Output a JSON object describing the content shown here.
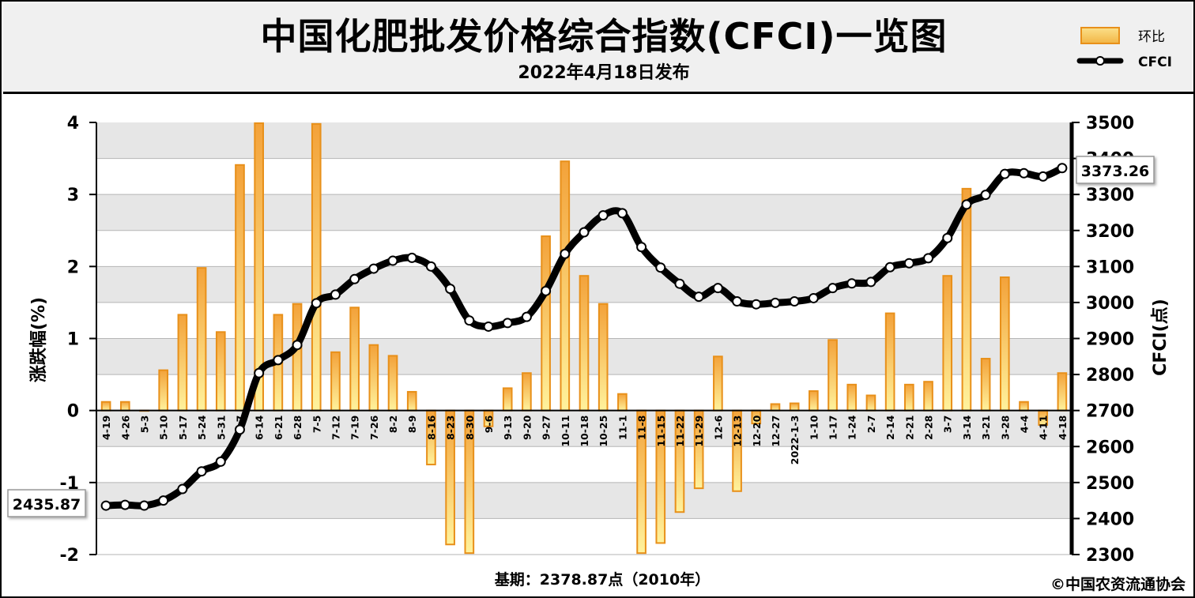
{
  "header": {
    "title": "中国化肥批发价格综合指数(CFCI)一览图",
    "subtitle": "2022年4月18日发布"
  },
  "legend": {
    "bar_label": "环比",
    "line_label": "CFCI"
  },
  "footer": {
    "base_period": "基期：2378.87点（2010年）",
    "copyright": "©中国农资流通协会"
  },
  "colors": {
    "bar_stroke": "#e8901a",
    "bar_fill_top": "#f4a43a",
    "bar_fill_bottom": "#fff2a0",
    "line": "#000000",
    "band": "#e6e6e6"
  },
  "chart_data": {
    "type": "bar+line",
    "categories": [
      "4-19",
      "4-26",
      "5-3",
      "5-10",
      "5-17",
      "5-24",
      "5-31",
      "6-7",
      "6-14",
      "6-21",
      "6-28",
      "7-5",
      "7-12",
      "7-19",
      "7-26",
      "8-2",
      "8-9",
      "8-16",
      "8-23",
      "8-30",
      "9-6",
      "9-13",
      "9-20",
      "9-27",
      "10-11",
      "10-18",
      "10-25",
      "11-1",
      "11-8",
      "11-15",
      "11-22",
      "11-29",
      "12-6",
      "12-13",
      "12-20",
      "12-27",
      "2022-1-3",
      "1-10",
      "1-17",
      "1-24",
      "2-7",
      "2-14",
      "2-21",
      "2-28",
      "3-7",
      "3-14",
      "3-21",
      "3-28",
      "4-4",
      "4-11",
      "4-18"
    ],
    "series": [
      {
        "name": "环比",
        "axis": "left",
        "type": "bar",
        "values": [
          0.12,
          0.12,
          0,
          0.56,
          1.33,
          1.98,
          1.09,
          3.41,
          3.99,
          1.33,
          1.48,
          3.98,
          0.81,
          1.43,
          0.91,
          0.76,
          0.26,
          -0.75,
          -1.86,
          -1.98,
          -0.22,
          0.31,
          0.52,
          2.42,
          3.46,
          1.87,
          1.48,
          0.23,
          -1.98,
          -1.84,
          -1.41,
          -1.08,
          0.75,
          -1.12,
          -0.18,
          0.09,
          0.1,
          0.27,
          0.98,
          0.36,
          0.21,
          1.35,
          0.36,
          0.4,
          1.87,
          3.08,
          0.72,
          1.85,
          0.12,
          -0.2,
          0.52
        ]
      },
      {
        "name": "CFCI",
        "axis": "right",
        "type": "line",
        "values": [
          2435.87,
          2438,
          2436,
          2450,
          2482,
          2531,
          2558,
          2647,
          2804,
          2840,
          2882,
          2998,
          3022,
          3065,
          3094,
          3116,
          3124,
          3100,
          3038,
          2950,
          2933,
          2943,
          2960,
          3032,
          3135,
          3195,
          3242,
          3248,
          3154,
          3097,
          3052,
          3016,
          3040,
          3003,
          2995,
          2999,
          3003,
          3012,
          3040,
          3053,
          3057,
          3098,
          3109,
          3123,
          3179,
          3272,
          3299,
          3357,
          3359,
          3350,
          3373.26
        ]
      }
    ],
    "start_label": "2435.87",
    "end_label": "3373.26",
    "ylabel_left": "涨跌幅(%)",
    "ylabel_right": "CFCI(点)",
    "ylim_left": [
      -2,
      4
    ],
    "ylim_right": [
      2300,
      3500
    ],
    "yticks_left": [
      "-2",
      "-1",
      "0",
      "1",
      "2",
      "3",
      "4"
    ],
    "yticks_right": [
      "2300",
      "2400",
      "2500",
      "2600",
      "2700",
      "2800",
      "2900",
      "3000",
      "3100",
      "3200",
      "3300",
      "3400",
      "3500"
    ],
    "legend_position": "top-right"
  }
}
